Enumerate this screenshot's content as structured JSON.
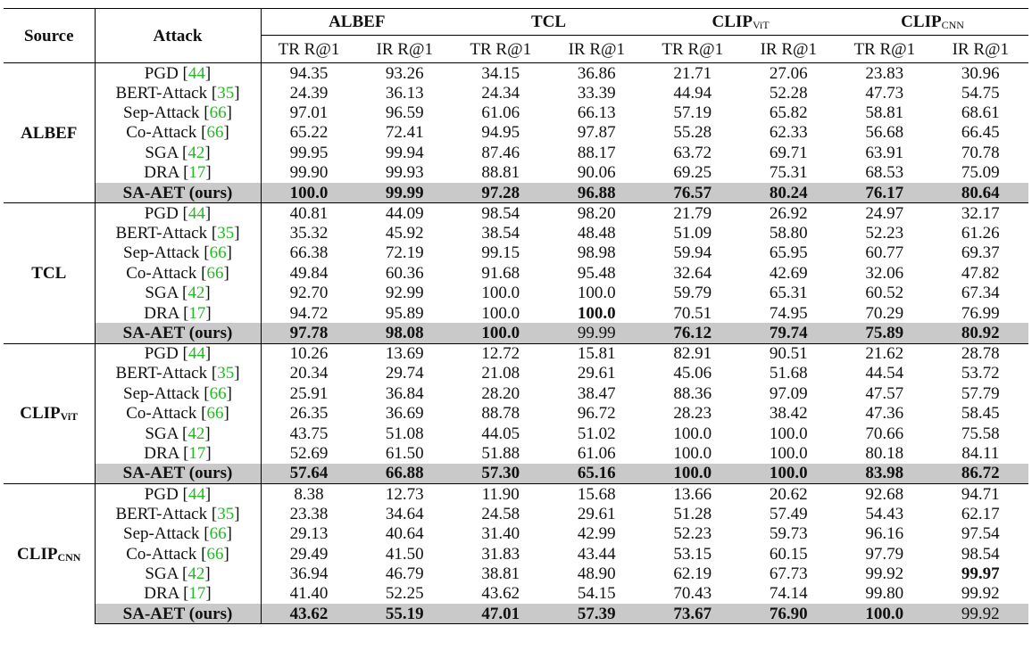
{
  "header": {
    "source": "Source",
    "attack": "Attack",
    "models": [
      {
        "name": "ALBEF",
        "sub": ""
      },
      {
        "name": "TCL",
        "sub": ""
      },
      {
        "name": "CLIP",
        "sub": "ViT"
      },
      {
        "name": "CLIP",
        "sub": "CNN"
      }
    ],
    "metrics": [
      "TR R@1",
      "IR R@1"
    ]
  },
  "groups": [
    {
      "source": {
        "name": "ALBEF",
        "sub": ""
      },
      "rows": [
        {
          "attack": "PGD",
          "ref": "44",
          "values": [
            "94.35",
            "93.26",
            "34.15",
            "36.86",
            "21.71",
            "27.06",
            "23.83",
            "30.96"
          ]
        },
        {
          "attack": "BERT-Attack",
          "ref": "35",
          "values": [
            "24.39",
            "36.13",
            "24.34",
            "33.39",
            "44.94",
            "52.28",
            "47.73",
            "54.75"
          ]
        },
        {
          "attack": "Sep-Attack",
          "ref": "66",
          "values": [
            "97.01",
            "96.59",
            "61.06",
            "66.13",
            "57.19",
            "65.82",
            "58.81",
            "68.61"
          ]
        },
        {
          "attack": "Co-Attack",
          "ref": "66",
          "values": [
            "65.22",
            "72.41",
            "94.95",
            "97.87",
            "55.28",
            "62.33",
            "56.68",
            "66.45"
          ]
        },
        {
          "attack": "SGA",
          "ref": "42",
          "values": [
            "99.95",
            "99.94",
            "87.46",
            "88.17",
            "63.72",
            "69.71",
            "63.91",
            "70.78"
          ]
        },
        {
          "attack": "DRA",
          "ref": "17",
          "values": [
            "99.90",
            "99.93",
            "88.81",
            "90.06",
            "69.25",
            "75.31",
            "68.53",
            "75.09"
          ]
        }
      ],
      "ours": {
        "attack": "SA-AET (ours)",
        "values": [
          "100.0",
          "99.99",
          "97.28",
          "96.88",
          "76.57",
          "80.24",
          "76.17",
          "80.64"
        ],
        "bold": [
          true,
          true,
          true,
          true,
          true,
          true,
          true,
          true
        ]
      },
      "bold_cells": []
    },
    {
      "source": {
        "name": "TCL",
        "sub": ""
      },
      "rows": [
        {
          "attack": "PGD",
          "ref": "44",
          "values": [
            "40.81",
            "44.09",
            "98.54",
            "98.20",
            "21.79",
            "26.92",
            "24.97",
            "32.17"
          ]
        },
        {
          "attack": "BERT-Attack",
          "ref": "35",
          "values": [
            "35.32",
            "45.92",
            "38.54",
            "48.48",
            "51.09",
            "58.80",
            "52.23",
            "61.26"
          ]
        },
        {
          "attack": "Sep-Attack",
          "ref": "66",
          "values": [
            "66.38",
            "72.19",
            "99.15",
            "98.98",
            "59.94",
            "65.95",
            "60.77",
            "69.37"
          ]
        },
        {
          "attack": "Co-Attack",
          "ref": "66",
          "values": [
            "49.84",
            "60.36",
            "91.68",
            "95.48",
            "32.64",
            "42.69",
            "32.06",
            "47.82"
          ]
        },
        {
          "attack": "SGA",
          "ref": "42",
          "values": [
            "92.70",
            "92.99",
            "100.0",
            "100.0",
            "59.79",
            "65.31",
            "60.52",
            "67.34"
          ]
        },
        {
          "attack": "DRA",
          "ref": "17",
          "values": [
            "94.72",
            "95.89",
            "100.0",
            "100.0",
            "70.51",
            "74.95",
            "70.29",
            "76.99"
          ]
        }
      ],
      "ours": {
        "attack": "SA-AET (ours)",
        "values": [
          "97.78",
          "98.08",
          "100.0",
          "99.99",
          "76.12",
          "79.74",
          "75.89",
          "80.92"
        ],
        "bold": [
          true,
          true,
          true,
          false,
          true,
          true,
          true,
          true
        ]
      },
      "bold_cells": [
        [
          5,
          3
        ]
      ]
    },
    {
      "source": {
        "name": "CLIP",
        "sub": "ViT"
      },
      "rows": [
        {
          "attack": "PGD",
          "ref": "44",
          "values": [
            "10.26",
            "13.69",
            "12.72",
            "15.81",
            "82.91",
            "90.51",
            "21.62",
            "28.78"
          ]
        },
        {
          "attack": "BERT-Attack",
          "ref": "35",
          "values": [
            "20.34",
            "29.74",
            "21.08",
            "29.61",
            "45.06",
            "51.68",
            "44.54",
            "53.72"
          ]
        },
        {
          "attack": "Sep-Attack",
          "ref": "66",
          "values": [
            "25.91",
            "36.84",
            "28.20",
            "38.47",
            "88.36",
            "97.09",
            "47.57",
            "57.79"
          ]
        },
        {
          "attack": "Co-Attack",
          "ref": "66",
          "values": [
            "26.35",
            "36.69",
            "88.78",
            "96.72",
            "28.23",
            "38.42",
            "47.36",
            "58.45"
          ]
        },
        {
          "attack": "SGA",
          "ref": "42",
          "values": [
            "43.75",
            "51.08",
            "44.05",
            "51.02",
            "100.0",
            "100.0",
            "70.66",
            "75.58"
          ]
        },
        {
          "attack": "DRA",
          "ref": "17",
          "values": [
            "52.69",
            "61.50",
            "51.88",
            "61.06",
            "100.0",
            "100.0",
            "80.18",
            "84.11"
          ]
        }
      ],
      "ours": {
        "attack": "SA-AET (ours)",
        "values": [
          "57.64",
          "66.88",
          "57.30",
          "65.16",
          "100.0",
          "100.0",
          "83.98",
          "86.72"
        ],
        "bold": [
          true,
          true,
          true,
          true,
          true,
          true,
          true,
          true
        ]
      },
      "bold_cells": []
    },
    {
      "source": {
        "name": "CLIP",
        "sub": "CNN"
      },
      "rows": [
        {
          "attack": "PGD",
          "ref": "44",
          "values": [
            "8.38",
            "12.73",
            "11.90",
            "15.68",
            "13.66",
            "20.62",
            "92.68",
            "94.71"
          ]
        },
        {
          "attack": "BERT-Attack",
          "ref": "35",
          "values": [
            "23.38",
            "34.64",
            "24.58",
            "29.61",
            "51.28",
            "57.49",
            "54.43",
            "62.17"
          ]
        },
        {
          "attack": "Sep-Attack",
          "ref": "66",
          "values": [
            "29.13",
            "40.64",
            "31.40",
            "42.99",
            "52.23",
            "59.73",
            "96.16",
            "97.54"
          ]
        },
        {
          "attack": "Co-Attack",
          "ref": "66",
          "values": [
            "29.49",
            "41.50",
            "31.83",
            "43.44",
            "53.15",
            "60.15",
            "97.79",
            "98.54"
          ]
        },
        {
          "attack": "SGA",
          "ref": "42",
          "values": [
            "36.94",
            "46.79",
            "38.81",
            "48.90",
            "62.19",
            "67.73",
            "99.92",
            "99.97"
          ]
        },
        {
          "attack": "DRA",
          "ref": "17",
          "values": [
            "41.40",
            "52.25",
            "43.62",
            "54.15",
            "70.43",
            "74.14",
            "99.80",
            "99.92"
          ]
        }
      ],
      "ours": {
        "attack": "SA-AET (ours)",
        "values": [
          "43.62",
          "55.19",
          "47.01",
          "57.39",
          "73.67",
          "76.90",
          "100.0",
          "99.92"
        ],
        "bold": [
          true,
          true,
          true,
          true,
          true,
          true,
          true,
          false
        ]
      },
      "bold_cells": [
        [
          4,
          7
        ]
      ]
    }
  ]
}
